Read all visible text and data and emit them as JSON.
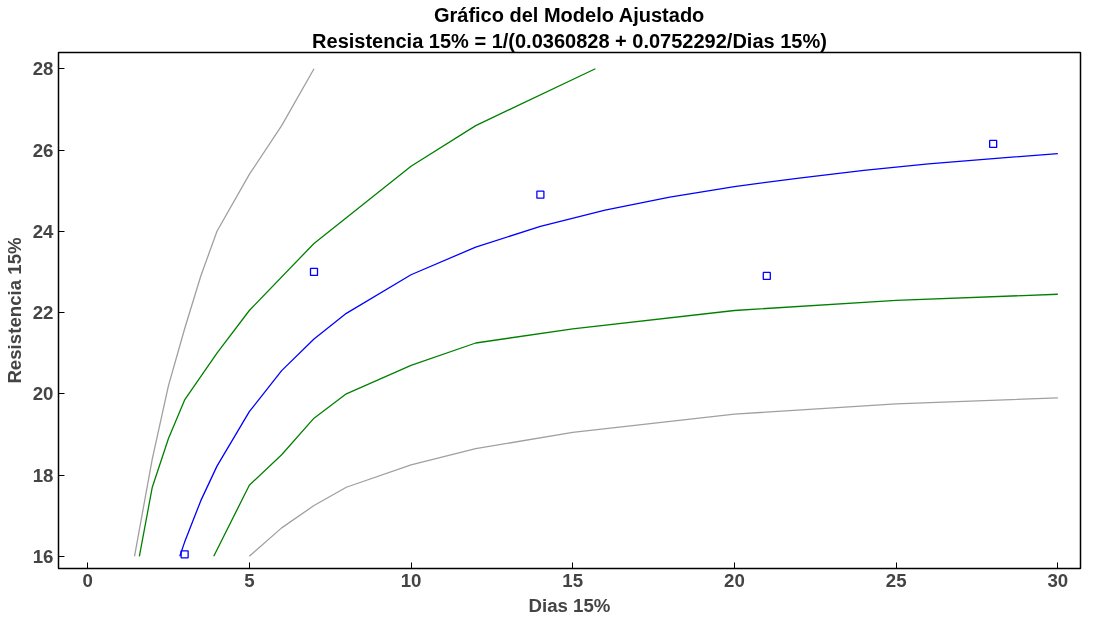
{
  "chart_data": {
    "type": "line",
    "title": "Gráfico del Modelo Ajustado",
    "subtitle": "Resistencia 15% = 1/(0.0360828 + 0.0752292/Dias 15%)",
    "xlabel": "Dias 15%",
    "ylabel": "Resistencia 15%",
    "xlim": [
      -0.9,
      30.7
    ],
    "ylim": [
      15.7,
      28.4
    ],
    "xticks": [
      0,
      5,
      10,
      15,
      20,
      25,
      30
    ],
    "yticks": [
      16,
      18,
      20,
      22,
      24,
      26,
      28
    ],
    "grid": false,
    "marker": "none",
    "line_style": "solid",
    "series": [
      {
        "color": "#a0a0a0",
        "x": [
          1.45,
          2,
          2.5,
          3,
          3.5,
          4,
          5,
          6,
          7.0
        ],
        "values": [
          16,
          18.4,
          20.2,
          21.6,
          22.9,
          24.0,
          25.4,
          26.6,
          28
        ]
      },
      {
        "color": "#008000",
        "x": [
          1.6,
          2,
          2.5,
          3,
          4,
          5,
          7,
          10,
          12,
          15.7
        ],
        "values": [
          16,
          17.7,
          18.9,
          19.85,
          21.0,
          22.05,
          23.7,
          25.6,
          26.6,
          28
        ]
      },
      {
        "color": "#0000ff",
        "x": [
          2.85,
          3,
          3.5,
          4,
          5,
          6,
          7,
          8,
          10,
          12,
          14,
          16,
          18,
          20,
          22,
          24,
          26,
          28,
          30
        ],
        "values": [
          16.0,
          16.35,
          17.37,
          18.22,
          19.56,
          20.57,
          21.35,
          21.98,
          22.93,
          23.61,
          24.12,
          24.52,
          24.84,
          25.1,
          25.31,
          25.5,
          25.66,
          25.79,
          25.91
        ]
      },
      {
        "color": "#008000",
        "x": [
          3.9,
          5,
          6,
          7,
          8,
          10,
          12,
          15,
          20,
          25,
          30
        ],
        "values": [
          16,
          17.75,
          18.5,
          19.4,
          20.0,
          20.7,
          21.25,
          21.6,
          22.05,
          22.3,
          22.45
        ]
      },
      {
        "color": "#a0a0a0",
        "x": [
          5,
          6,
          7,
          8,
          10,
          12,
          15,
          20,
          25,
          30
        ],
        "values": [
          16,
          16.7,
          17.25,
          17.7,
          18.25,
          18.65,
          19.05,
          19.5,
          19.75,
          19.9
        ]
      },
      {
        "type": "scatter",
        "marker": "square",
        "color": "#0000ff",
        "x": [
          3,
          7,
          14,
          21,
          28
        ],
        "values": [
          16.05,
          23.0,
          24.9,
          22.9,
          26.15
        ]
      }
    ]
  }
}
